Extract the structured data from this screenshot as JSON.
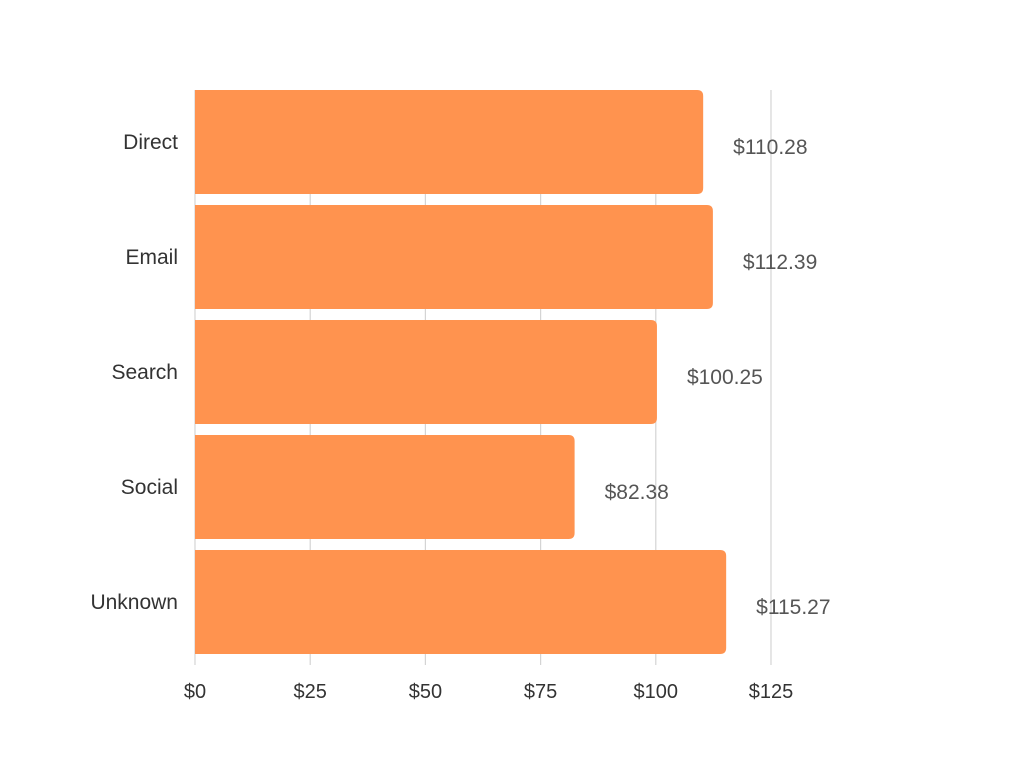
{
  "chart_data": {
    "type": "bar",
    "orientation": "horizontal",
    "categories": [
      "Direct",
      "Email",
      "Search",
      "Social",
      "Unknown"
    ],
    "values": [
      110.28,
      112.39,
      100.25,
      82.38,
      115.27
    ],
    "data_labels": [
      "$110.28",
      "$112.39",
      "$100.25",
      "$82.38",
      "$115.27"
    ],
    "x_ticks": [
      0,
      25,
      50,
      75,
      100,
      125
    ],
    "x_tick_labels": [
      "$0",
      "$25",
      "$50",
      "$75",
      "$100",
      "$125"
    ],
    "xlim": [
      0,
      125
    ],
    "bar_color": "#ff934f",
    "title": "",
    "xlabel": "",
    "ylabel": "",
    "grid": "vertical",
    "legend": "none"
  }
}
